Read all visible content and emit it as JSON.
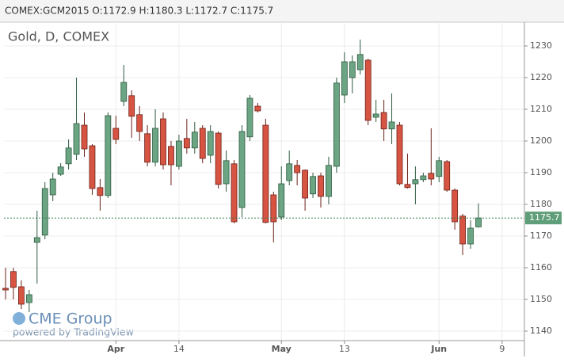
{
  "chart_data": {
    "type": "candlestick",
    "header": "COMEX:GCM2015 O:1172.9 H:1180.3 L:1172.7 C:1175.7",
    "title": "Gold, D, COMEX",
    "watermark": "CME Group",
    "credit": "powered by TradingView",
    "categories": [
      null,
      null,
      null,
      null,
      null,
      null,
      null,
      null,
      null,
      null,
      null,
      null,
      null,
      null,
      "Apr",
      null,
      null,
      null,
      null,
      null,
      null,
      null,
      "14",
      null,
      null,
      null,
      null,
      null,
      null,
      null,
      null,
      null,
      null,
      null,
      null,
      "May",
      null,
      null,
      null,
      null,
      null,
      null,
      null,
      "13",
      null,
      null,
      null,
      null,
      null,
      null,
      null,
      null,
      null,
      null,
      null,
      "Jun",
      null,
      null,
      null,
      null,
      null,
      null,
      null,
      "9"
    ],
    "open": [
      1153.5,
      1158.8,
      1154,
      1149,
      1168,
      1170.3,
      1183,
      1189.5,
      1192.8,
      1195.8,
      1205,
      1198.5,
      1185.3,
      1182.8,
      1204,
      1212.5,
      1214.3,
      1208.3,
      1202.3,
      1193.3,
      1207,
      1198.3,
      1192,
      1200.8,
      1197.8,
      1204,
      1195.5,
      1202.5,
      1186.5,
      1192.8,
      1179,
      1201.3,
      1211,
      1205,
      1183,
      1176,
      1187.5,
      1192.3,
      1190.8,
      1183.3,
      1189,
      1182.5,
      1192,
      1214.5,
      1220,
      1222.5,
      1225.5,
      1207.5,
      1209,
      1203.8,
      1205,
      1186.3,
      1186.5,
      1187.8,
      1189.8,
      1188.8,
      1193.5,
      1184.5,
      1176.3,
      1167.5,
      1172.9,
      null,
      null,
      null
    ],
    "high": [
      1160,
      1160,
      1156,
      1153,
      1178,
      1187,
      1190,
      1193,
      1200.5,
      1220,
      1209,
      1199,
      1188,
      1209,
      1208,
      1224,
      1216,
      1211,
      1205,
      1210,
      1209,
      1200,
      1202,
      1207,
      1206,
      1205,
      1205,
      1203,
      1197,
      1194,
      1205,
      1214.5,
      1212,
      1207,
      1184,
      1192,
      1197,
      1194,
      1191,
      1190,
      1190,
      1195,
      1220,
      1228,
      1227,
      1232,
      1226,
      1213,
      1213,
      1215,
      1206,
      1196,
      1192,
      1190,
      1204,
      1195,
      1194,
      1185,
      1177,
      1175,
      1180.3,
      null,
      null,
      null
    ],
    "low": [
      1150,
      1150,
      1147,
      1146,
      1155,
      1169,
      1181,
      1189,
      1191,
      1194,
      1195,
      1183,
      1178,
      1182,
      1199,
      1211,
      1201,
      1200,
      1192,
      1192,
      1191,
      1186,
      1191,
      1196,
      1196,
      1193,
      1193,
      1185,
      1184,
      1174,
      1176,
      1200,
      1209,
      1174,
      1168,
      1175,
      1186,
      1186,
      1178,
      1182,
      1179,
      1180,
      1190,
      1212,
      1215,
      1221,
      1205,
      1206,
      1200,
      1199,
      1186,
      1185,
      1180,
      1187,
      1186,
      1187,
      1184,
      1172,
      1164,
      1166,
      1172.7,
      null,
      null,
      null
    ],
    "close": [
      1153,
      1153.8,
      1148.5,
      1151.5,
      1169.5,
      1185,
      1188,
      1191.8,
      1197.8,
      1205.5,
      1197.5,
      1185,
      1182.8,
      1208,
      1200.5,
      1218.5,
      1207.8,
      1203,
      1193.3,
      1204,
      1192.5,
      1192.5,
      1200,
      1197.8,
      1202.8,
      1194.5,
      1203,
      1186.3,
      1193.8,
      1174.5,
      1203,
      1213.5,
      1209.5,
      1174.3,
      1174.5,
      1186.5,
      1192.8,
      1190,
      1182,
      1188.8,
      1182.5,
      1192.3,
      1218.3,
      1225,
      1225,
      1227.3,
      1206.5,
      1208.5,
      1203.8,
      1206,
      1186.5,
      1185.3,
      1187.8,
      1189,
      1188,
      1193.8,
      1184.5,
      1174.5,
      1167.5,
      1172.5,
      1175.7,
      null,
      null,
      null
    ],
    "up_color": "#6ba583",
    "down_color": "#d75442",
    "last_price": 1175.7,
    "ylim": [
      1137,
      1237.5
    ],
    "yticks": [
      1140,
      1150,
      1160,
      1170,
      1180,
      1190,
      1200,
      1210,
      1220,
      1230
    ],
    "grid": true
  }
}
